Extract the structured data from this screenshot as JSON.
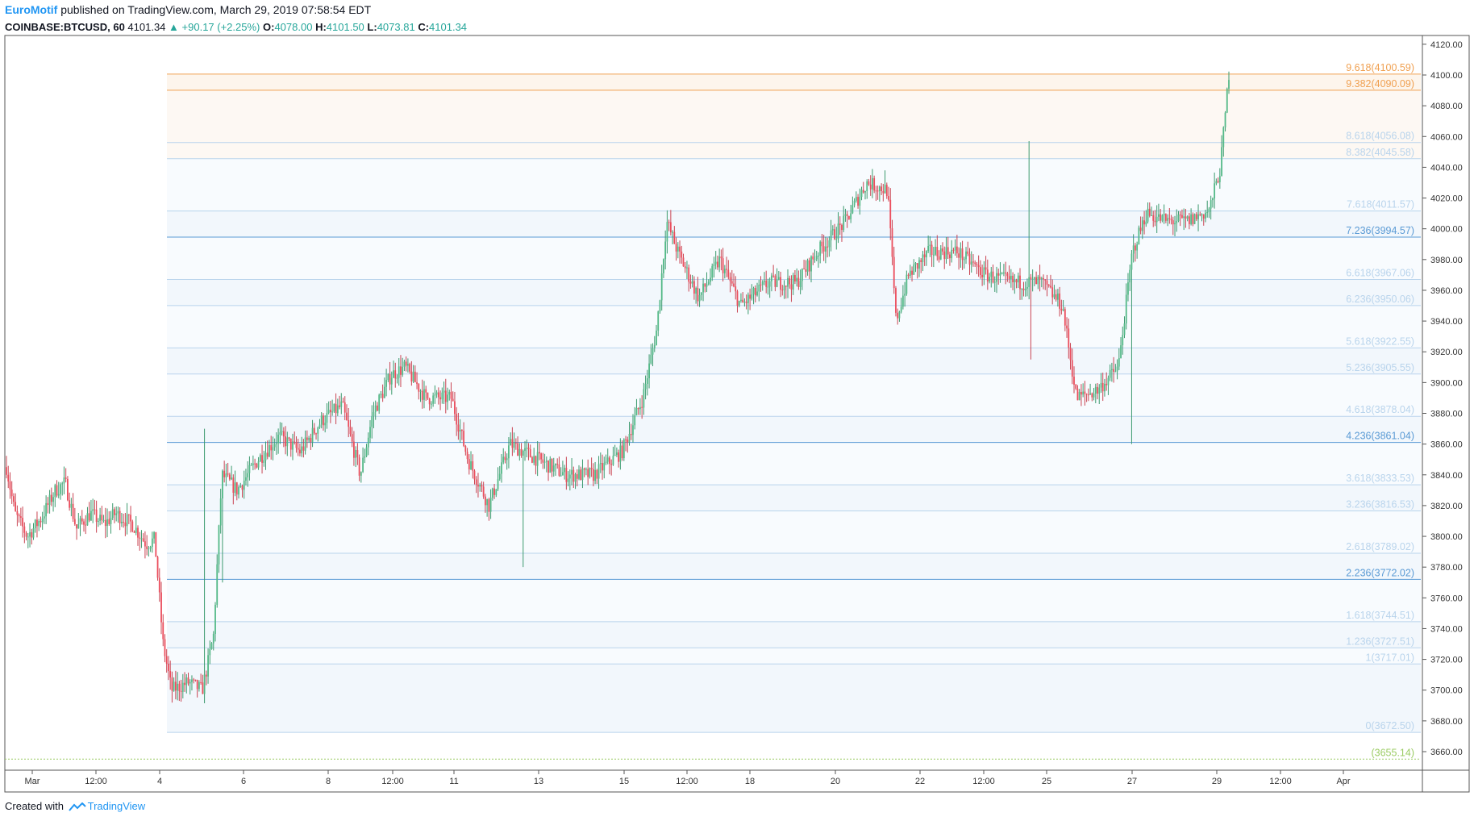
{
  "header": {
    "author": "EuroMotif",
    "published": "published on TradingView.com, March 29, 2019 07:58:54 EDT",
    "symbol": "COINBASE:BTCUSD, 60",
    "last": "4101.34",
    "change": "▲ +90.17 (+2.25%)",
    "o_label": "O:",
    "o_value": "4078.00",
    "h_label": "H:",
    "h_value": "4101.50",
    "l_label": "L:",
    "l_value": "4073.81",
    "c_label": "C:",
    "c_value": "4101.34"
  },
  "footer": {
    "created_with": "Created with",
    "brand": "TradingView"
  },
  "colors": {
    "up": "#26a69a",
    "down": "#ef5350",
    "upBody": "#53b987",
    "downBody": "#eb4d5c",
    "fibBlue": "#5b9bd5",
    "fibOrange": "#f0a050",
    "fibLight": "#b9d4ec",
    "base": "#9ccc65"
  },
  "chart_data": {
    "type": "candlestick",
    "symbol": "COINBASE:BTCUSD",
    "interval": "60",
    "y_axis": {
      "min": 3650,
      "max": 4125,
      "ticks": [
        3660,
        3680,
        3700,
        3720,
        3740,
        3760,
        3780,
        3800,
        3820,
        3840,
        3860,
        3880,
        3900,
        3920,
        3940,
        3960,
        3980,
        4000,
        4020,
        4040,
        4060,
        4080,
        4100,
        4120
      ]
    },
    "x_axis": {
      "labels": [
        "Mar",
        "12:00",
        "4",
        "6",
        "8",
        "12:00",
        "11",
        "13",
        "15",
        "12:00",
        "18",
        "20",
        "22",
        "12:00",
        "25",
        "27",
        "29",
        "12:00",
        "Apr"
      ]
    },
    "fib_levels": [
      {
        "label": "9.618(4100.59)",
        "value": 4100.59,
        "style": "orange-strong"
      },
      {
        "label": "9.382(4090.09)",
        "value": 4090.09,
        "style": "orange-strong"
      },
      {
        "label": "8.618(4056.08)",
        "value": 4056.08,
        "style": "light"
      },
      {
        "label": "8.382(4045.58)",
        "value": 4045.58,
        "style": "light"
      },
      {
        "label": "7.618(4011.57)",
        "value": 4011.57,
        "style": "light"
      },
      {
        "label": "7.236(3994.57)",
        "value": 3994.57,
        "style": "strong"
      },
      {
        "label": "6.618(3967.06)",
        "value": 3967.06,
        "style": "light"
      },
      {
        "label": "6.236(3950.06)",
        "value": 3950.06,
        "style": "light"
      },
      {
        "label": "5.618(3922.55)",
        "value": 3922.55,
        "style": "light"
      },
      {
        "label": "5.236(3905.55)",
        "value": 3905.55,
        "style": "light"
      },
      {
        "label": "4.618(3878.04)",
        "value": 3878.04,
        "style": "light"
      },
      {
        "label": "4.236(3861.04)",
        "value": 3861.04,
        "style": "strong"
      },
      {
        "label": "3.618(3833.53)",
        "value": 3833.53,
        "style": "light"
      },
      {
        "label": "3.236(3816.53)",
        "value": 3816.53,
        "style": "light"
      },
      {
        "label": "2.618(3789.02)",
        "value": 3789.02,
        "style": "light"
      },
      {
        "label": "2.236(3772.02)",
        "value": 3772.02,
        "style": "strong"
      },
      {
        "label": "1.618(3744.51)",
        "value": 3744.51,
        "style": "light"
      },
      {
        "label": "1.236(3727.51)",
        "value": 3727.51,
        "style": "light"
      },
      {
        "label": "1(3717.01)",
        "value": 3717.01,
        "style": "light"
      },
      {
        "label": "0(3672.50)",
        "value": 3672.5,
        "style": "light"
      },
      {
        "label": "(3655.14)",
        "value": 3655.14,
        "style": "base"
      }
    ],
    "price_path": [
      {
        "x": 0.0,
        "price": 3845
      },
      {
        "x": 0.006,
        "price": 3815
      },
      {
        "x": 0.015,
        "price": 3800
      },
      {
        "x": 0.025,
        "price": 3812
      },
      {
        "x": 0.035,
        "price": 3830
      },
      {
        "x": 0.042,
        "price": 3835
      },
      {
        "x": 0.05,
        "price": 3805
      },
      {
        "x": 0.06,
        "price": 3815
      },
      {
        "x": 0.07,
        "price": 3808
      },
      {
        "x": 0.078,
        "price": 3815
      },
      {
        "x": 0.09,
        "price": 3808
      },
      {
        "x": 0.1,
        "price": 3795
      },
      {
        "x": 0.106,
        "price": 3798
      },
      {
        "x": 0.112,
        "price": 3730
      },
      {
        "x": 0.118,
        "price": 3700
      },
      {
        "x": 0.13,
        "price": 3705
      },
      {
        "x": 0.14,
        "price": 3700
      },
      {
        "x": 0.148,
        "price": 3735
      },
      {
        "x": 0.154,
        "price": 3840
      },
      {
        "x": 0.165,
        "price": 3830
      },
      {
        "x": 0.18,
        "price": 3850
      },
      {
        "x": 0.195,
        "price": 3865
      },
      {
        "x": 0.21,
        "price": 3855
      },
      {
        "x": 0.225,
        "price": 3875
      },
      {
        "x": 0.24,
        "price": 3885
      },
      {
        "x": 0.253,
        "price": 3840
      },
      {
        "x": 0.262,
        "price": 3880
      },
      {
        "x": 0.275,
        "price": 3905
      },
      {
        "x": 0.285,
        "price": 3910
      },
      {
        "x": 0.3,
        "price": 3890
      },
      {
        "x": 0.318,
        "price": 3890
      },
      {
        "x": 0.33,
        "price": 3850
      },
      {
        "x": 0.345,
        "price": 3820
      },
      {
        "x": 0.36,
        "price": 3860
      },
      {
        "x": 0.38,
        "price": 3850
      },
      {
        "x": 0.4,
        "price": 3840
      },
      {
        "x": 0.42,
        "price": 3840
      },
      {
        "x": 0.44,
        "price": 3855
      },
      {
        "x": 0.455,
        "price": 3890
      },
      {
        "x": 0.465,
        "price": 3935
      },
      {
        "x": 0.472,
        "price": 4005
      },
      {
        "x": 0.48,
        "price": 3985
      },
      {
        "x": 0.495,
        "price": 3955
      },
      {
        "x": 0.51,
        "price": 3980
      },
      {
        "x": 0.525,
        "price": 3950
      },
      {
        "x": 0.545,
        "price": 3965
      },
      {
        "x": 0.565,
        "price": 3965
      },
      {
        "x": 0.58,
        "price": 3985
      },
      {
        "x": 0.6,
        "price": 4005
      },
      {
        "x": 0.615,
        "price": 4030
      },
      {
        "x": 0.63,
        "price": 4025
      },
      {
        "x": 0.636,
        "price": 3940
      },
      {
        "x": 0.645,
        "price": 3970
      },
      {
        "x": 0.66,
        "price": 3985
      },
      {
        "x": 0.68,
        "price": 3985
      },
      {
        "x": 0.7,
        "price": 3970
      },
      {
        "x": 0.72,
        "price": 3965
      },
      {
        "x": 0.74,
        "price": 3965
      },
      {
        "x": 0.755,
        "price": 3950
      },
      {
        "x": 0.765,
        "price": 3890
      },
      {
        "x": 0.78,
        "price": 3895
      },
      {
        "x": 0.795,
        "price": 3910
      },
      {
        "x": 0.805,
        "price": 3985
      },
      {
        "x": 0.815,
        "price": 4010
      },
      {
        "x": 0.83,
        "price": 4005
      },
      {
        "x": 0.845,
        "price": 4005
      },
      {
        "x": 0.86,
        "price": 4012
      },
      {
        "x": 0.868,
        "price": 4040
      },
      {
        "x": 0.874,
        "price": 4101
      }
    ]
  }
}
